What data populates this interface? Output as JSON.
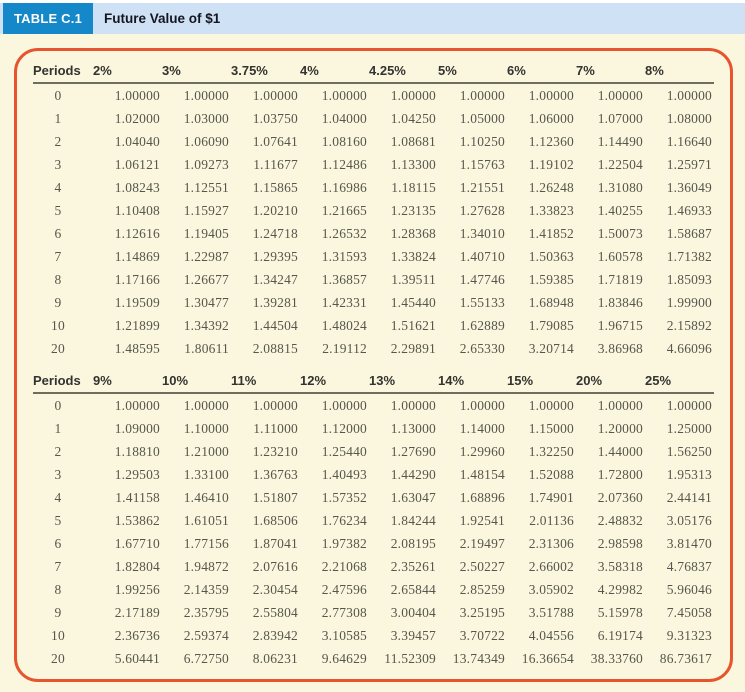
{
  "header": {
    "table_label": "TABLE C.1",
    "title": "Future Value of $1"
  },
  "colors": {
    "badge_blue": "#1488c8",
    "strip_blue": "#cfe2f5",
    "page_cream": "#fbf7df",
    "border_orange": "#e7542d",
    "header_text": "#33332f",
    "value_text": "#56564c",
    "rule_gray": "#6e6e5f",
    "title_text": "#15151f",
    "badge_text": "#ffffff"
  },
  "sections": [
    {
      "columns": [
        "Periods",
        "2%",
        "3%",
        "3.75%",
        "4%",
        "4.25%",
        "5%",
        "6%",
        "7%",
        "8%"
      ],
      "rows": [
        [
          "0",
          "1.00000",
          "1.00000",
          "1.00000",
          "1.00000",
          "1.00000",
          "1.00000",
          "1.00000",
          "1.00000",
          "1.00000"
        ],
        [
          "1",
          "1.02000",
          "1.03000",
          "1.03750",
          "1.04000",
          "1.04250",
          "1.05000",
          "1.06000",
          "1.07000",
          "1.08000"
        ],
        [
          "2",
          "1.04040",
          "1.06090",
          "1.07641",
          "1.08160",
          "1.08681",
          "1.10250",
          "1.12360",
          "1.14490",
          "1.16640"
        ],
        [
          "3",
          "1.06121",
          "1.09273",
          "1.11677",
          "1.12486",
          "1.13300",
          "1.15763",
          "1.19102",
          "1.22504",
          "1.25971"
        ],
        [
          "4",
          "1.08243",
          "1.12551",
          "1.15865",
          "1.16986",
          "1.18115",
          "1.21551",
          "1.26248",
          "1.31080",
          "1.36049"
        ],
        [
          "5",
          "1.10408",
          "1.15927",
          "1.20210",
          "1.21665",
          "1.23135",
          "1.27628",
          "1.33823",
          "1.40255",
          "1.46933"
        ],
        [
          "6",
          "1.12616",
          "1.19405",
          "1.24718",
          "1.26532",
          "1.28368",
          "1.34010",
          "1.41852",
          "1.50073",
          "1.58687"
        ],
        [
          "7",
          "1.14869",
          "1.22987",
          "1.29395",
          "1.31593",
          "1.33824",
          "1.40710",
          "1.50363",
          "1.60578",
          "1.71382"
        ],
        [
          "8",
          "1.17166",
          "1.26677",
          "1.34247",
          "1.36857",
          "1.39511",
          "1.47746",
          "1.59385",
          "1.71819",
          "1.85093"
        ],
        [
          "9",
          "1.19509",
          "1.30477",
          "1.39281",
          "1.42331",
          "1.45440",
          "1.55133",
          "1.68948",
          "1.83846",
          "1.99900"
        ],
        [
          "10",
          "1.21899",
          "1.34392",
          "1.44504",
          "1.48024",
          "1.51621",
          "1.62889",
          "1.79085",
          "1.96715",
          "2.15892"
        ],
        [
          "20",
          "1.48595",
          "1.80611",
          "2.08815",
          "2.19112",
          "2.29891",
          "2.65330",
          "3.20714",
          "3.86968",
          "4.66096"
        ]
      ]
    },
    {
      "columns": [
        "Periods",
        "9%",
        "10%",
        "11%",
        "12%",
        "13%",
        "14%",
        "15%",
        "20%",
        "25%"
      ],
      "rows": [
        [
          "0",
          "1.00000",
          "1.00000",
          "1.00000",
          "1.00000",
          "1.00000",
          "1.00000",
          "1.00000",
          "1.00000",
          "1.00000"
        ],
        [
          "1",
          "1.09000",
          "1.10000",
          "1.11000",
          "1.12000",
          "1.13000",
          "1.14000",
          "1.15000",
          "1.20000",
          "1.25000"
        ],
        [
          "2",
          "1.18810",
          "1.21000",
          "1.23210",
          "1.25440",
          "1.27690",
          "1.29960",
          "1.32250",
          "1.44000",
          "1.56250"
        ],
        [
          "3",
          "1.29503",
          "1.33100",
          "1.36763",
          "1.40493",
          "1.44290",
          "1.48154",
          "1.52088",
          "1.72800",
          "1.95313"
        ],
        [
          "4",
          "1.41158",
          "1.46410",
          "1.51807",
          "1.57352",
          "1.63047",
          "1.68896",
          "1.74901",
          "2.07360",
          "2.44141"
        ],
        [
          "5",
          "1.53862",
          "1.61051",
          "1.68506",
          "1.76234",
          "1.84244",
          "1.92541",
          "2.01136",
          "2.48832",
          "3.05176"
        ],
        [
          "6",
          "1.67710",
          "1.77156",
          "1.87041",
          "1.97382",
          "2.08195",
          "2.19497",
          "2.31306",
          "2.98598",
          "3.81470"
        ],
        [
          "7",
          "1.82804",
          "1.94872",
          "2.07616",
          "2.21068",
          "2.35261",
          "2.50227",
          "2.66002",
          "3.58318",
          "4.76837"
        ],
        [
          "8",
          "1.99256",
          "2.14359",
          "2.30454",
          "2.47596",
          "2.65844",
          "2.85259",
          "3.05902",
          "4.29982",
          "5.96046"
        ],
        [
          "9",
          "2.17189",
          "2.35795",
          "2.55804",
          "2.77308",
          "3.00404",
          "3.25195",
          "3.51788",
          "5.15978",
          "7.45058"
        ],
        [
          "10",
          "2.36736",
          "2.59374",
          "2.83942",
          "3.10585",
          "3.39457",
          "3.70722",
          "4.04556",
          "6.19174",
          "9.31323"
        ],
        [
          "20",
          "5.60441",
          "6.72750",
          "8.06231",
          "9.64629",
          "11.52309",
          "13.74349",
          "16.36654",
          "38.33760",
          "86.73617"
        ]
      ]
    }
  ]
}
